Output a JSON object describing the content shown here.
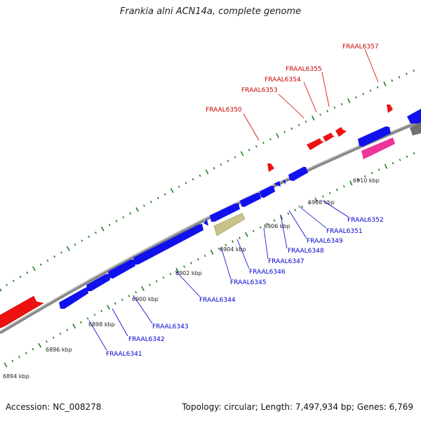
{
  "title": "Frankia alni ACN14a, complete genome",
  "footer": {
    "accession": "Accession: NC_008278",
    "summary": "Topology: circular; Length: 7,497,934 bp; Genes: 6,769"
  },
  "colors": {
    "forward_gene": "#ee1111",
    "reverse_gene": "#1111ee",
    "rna": "#ee3399",
    "pseudo": "#c8c28a",
    "other": "#808080",
    "backbone": "#a0a0a0",
    "tick": "#117711",
    "forward_label": "#cc0000",
    "reverse_label": "#0000cc"
  },
  "scale_labels": [
    "6894 kbp",
    "6896 kbp",
    "6898 kbp",
    "6900 kbp",
    "6902 kbp",
    "6904 kbp",
    "6906 kbp",
    "6908 kbp",
    "6910 kbp"
  ],
  "forward_labels": [
    "FRAAL6350",
    "FRAAL6353",
    "FRAAL6354",
    "FRAAL6355",
    "FRAAL6357"
  ],
  "reverse_labels": [
    "FRAAL6341",
    "FRAAL6342",
    "FRAAL6343",
    "FRAAL6344",
    "FRAAL6345",
    "FRAAL6346",
    "FRAAL6347",
    "FRAAL6348",
    "FRAAL6349",
    "FRAAL6351",
    "FRAAL6352"
  ]
}
